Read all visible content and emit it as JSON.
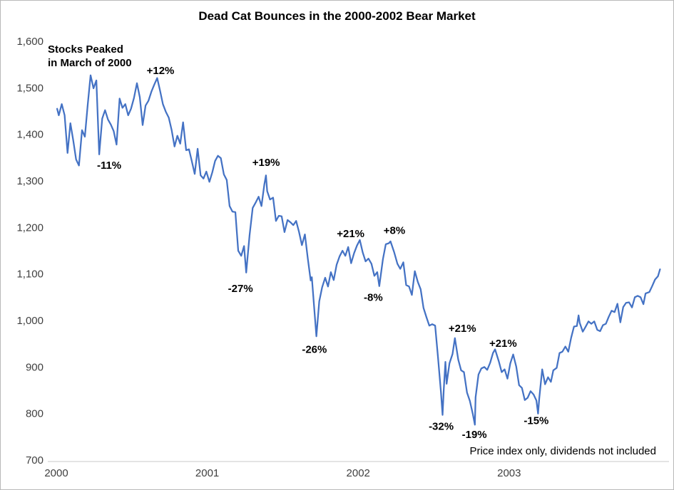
{
  "chart": {
    "title": "Dead Cat Bounces in the 2000-2002 Bear Market",
    "note": "Price index only, dividends not included"
  },
  "chart_data": {
    "type": "line",
    "title": "Dead Cat Bounces in the 2000-2002 Bear Market",
    "xlabel": "",
    "ylabel": "",
    "xlim": [
      2000,
      2004.05
    ],
    "ylim": [
      700,
      1600
    ],
    "grid": false,
    "legend": "none",
    "line_color": "#4472C4",
    "axis_label_color": "#404040",
    "axis_line_color": "#c9c9c9",
    "note": "Price index only, dividends not included",
    "callout": {
      "lines": [
        "Stocks Peaked",
        "in March of 2000"
      ],
      "x": 2000.02,
      "y": 1580
    },
    "y_ticks": [
      {
        "v": 1600,
        "label": "1,600"
      },
      {
        "v": 1500,
        "label": "1,500"
      },
      {
        "v": 1400,
        "label": "1,400"
      },
      {
        "v": 1300,
        "label": "1,300"
      },
      {
        "v": 1200,
        "label": "1,200"
      },
      {
        "v": 1100,
        "label": "1,100"
      },
      {
        "v": 1000,
        "label": "1,000"
      },
      {
        "v": 900,
        "label": "900"
      },
      {
        "v": 800,
        "label": "800"
      },
      {
        "v": 700,
        "label": "700"
      }
    ],
    "x_ticks": [
      {
        "v": 2000,
        "label": "2000"
      },
      {
        "v": 2001,
        "label": "2001"
      },
      {
        "v": 2002,
        "label": "2002"
      },
      {
        "v": 2003,
        "label": "2003"
      }
    ],
    "annotations": [
      {
        "text": "-11%",
        "x": 2000.35,
        "y": 1334
      },
      {
        "text": "+12%",
        "x": 2000.69,
        "y": 1537
      },
      {
        "text": "+19%",
        "x": 2001.39,
        "y": 1340
      },
      {
        "text": "-27%",
        "x": 2001.22,
        "y": 1069
      },
      {
        "text": "-26%",
        "x": 2001.71,
        "y": 938
      },
      {
        "text": "+21%",
        "x": 2001.95,
        "y": 1187
      },
      {
        "text": "-8%",
        "x": 2002.1,
        "y": 1050
      },
      {
        "text": "+8%",
        "x": 2002.24,
        "y": 1194
      },
      {
        "text": "-32%",
        "x": 2002.55,
        "y": 773
      },
      {
        "text": "+21%",
        "x": 2002.69,
        "y": 983
      },
      {
        "text": "-19%",
        "x": 2002.77,
        "y": 755
      },
      {
        "text": "+21%",
        "x": 2002.96,
        "y": 951
      },
      {
        "text": "-15%",
        "x": 2003.18,
        "y": 785
      }
    ],
    "series": [
      {
        "name": "Price index",
        "points": [
          [
            2000.005,
            1455
          ],
          [
            2000.016,
            1441
          ],
          [
            2000.036,
            1465
          ],
          [
            2000.055,
            1441
          ],
          [
            2000.074,
            1360
          ],
          [
            2000.093,
            1424
          ],
          [
            2000.112,
            1387
          ],
          [
            2000.131,
            1346
          ],
          [
            2000.15,
            1333
          ],
          [
            2000.17,
            1409
          ],
          [
            2000.189,
            1395
          ],
          [
            2000.208,
            1464
          ],
          [
            2000.227,
            1527
          ],
          [
            2000.246,
            1499
          ],
          [
            2000.265,
            1516
          ],
          [
            2000.284,
            1357
          ],
          [
            2000.304,
            1434
          ],
          [
            2000.323,
            1452
          ],
          [
            2000.342,
            1432
          ],
          [
            2000.361,
            1421
          ],
          [
            2000.38,
            1407
          ],
          [
            2000.399,
            1378
          ],
          [
            2000.419,
            1477
          ],
          [
            2000.438,
            1457
          ],
          [
            2000.457,
            1465
          ],
          [
            2000.476,
            1441
          ],
          [
            2000.495,
            1455
          ],
          [
            2000.514,
            1478
          ],
          [
            2000.534,
            1510
          ],
          [
            2000.553,
            1480
          ],
          [
            2000.572,
            1420
          ],
          [
            2000.591,
            1462
          ],
          [
            2000.61,
            1472
          ],
          [
            2000.63,
            1492
          ],
          [
            2000.649,
            1507
          ],
          [
            2000.668,
            1521
          ],
          [
            2000.687,
            1494
          ],
          [
            2000.706,
            1465
          ],
          [
            2000.725,
            1449
          ],
          [
            2000.745,
            1436
          ],
          [
            2000.764,
            1409
          ],
          [
            2000.783,
            1374
          ],
          [
            2000.802,
            1397
          ],
          [
            2000.821,
            1380
          ],
          [
            2000.84,
            1426
          ],
          [
            2000.86,
            1366
          ],
          [
            2000.879,
            1368
          ],
          [
            2000.898,
            1342
          ],
          [
            2000.917,
            1315
          ],
          [
            2000.936,
            1369
          ],
          [
            2000.956,
            1312
          ],
          [
            2000.975,
            1305
          ],
          [
            2000.994,
            1320
          ],
          [
            2001.014,
            1298
          ],
          [
            2001.033,
            1318
          ],
          [
            2001.052,
            1343
          ],
          [
            2001.071,
            1354
          ],
          [
            2001.09,
            1349
          ],
          [
            2001.11,
            1314
          ],
          [
            2001.129,
            1302
          ],
          [
            2001.148,
            1246
          ],
          [
            2001.167,
            1234
          ],
          [
            2001.186,
            1233
          ],
          [
            2001.205,
            1150
          ],
          [
            2001.225,
            1139
          ],
          [
            2001.244,
            1160
          ],
          [
            2001.258,
            1103
          ],
          [
            2001.28,
            1183
          ],
          [
            2001.301,
            1242
          ],
          [
            2001.32,
            1253
          ],
          [
            2001.34,
            1266
          ],
          [
            2001.359,
            1246
          ],
          [
            2001.378,
            1292
          ],
          [
            2001.389,
            1312
          ],
          [
            2001.397,
            1278
          ],
          [
            2001.416,
            1260
          ],
          [
            2001.436,
            1264
          ],
          [
            2001.455,
            1214
          ],
          [
            2001.474,
            1225
          ],
          [
            2001.493,
            1224
          ],
          [
            2001.512,
            1190
          ],
          [
            2001.532,
            1216
          ],
          [
            2001.551,
            1211
          ],
          [
            2001.57,
            1205
          ],
          [
            2001.589,
            1214
          ],
          [
            2001.608,
            1190
          ],
          [
            2001.627,
            1162
          ],
          [
            2001.647,
            1185
          ],
          [
            2001.666,
            1134
          ],
          [
            2001.685,
            1086
          ],
          [
            2001.693,
            1093
          ],
          [
            2001.723,
            966
          ],
          [
            2001.742,
            1041
          ],
          [
            2001.761,
            1071
          ],
          [
            2001.781,
            1092
          ],
          [
            2001.8,
            1073
          ],
          [
            2001.819,
            1104
          ],
          [
            2001.838,
            1087
          ],
          [
            2001.857,
            1120
          ],
          [
            2001.877,
            1138
          ],
          [
            2001.896,
            1150
          ],
          [
            2001.915,
            1139
          ],
          [
            2001.934,
            1158
          ],
          [
            2001.953,
            1123
          ],
          [
            2001.973,
            1145
          ],
          [
            2001.992,
            1161
          ],
          [
            2002.011,
            1173
          ],
          [
            2002.03,
            1146
          ],
          [
            2002.049,
            1127
          ],
          [
            2002.068,
            1133
          ],
          [
            2002.088,
            1122
          ],
          [
            2002.107,
            1096
          ],
          [
            2002.126,
            1104
          ],
          [
            2002.14,
            1074
          ],
          [
            2002.164,
            1132
          ],
          [
            2002.183,
            1164
          ],
          [
            2002.203,
            1166
          ],
          [
            2002.214,
            1170
          ],
          [
            2002.238,
            1147
          ],
          [
            2002.26,
            1122
          ],
          [
            2002.279,
            1111
          ],
          [
            2002.299,
            1125
          ],
          [
            2002.318,
            1076
          ],
          [
            2002.337,
            1073
          ],
          [
            2002.356,
            1055
          ],
          [
            2002.375,
            1106
          ],
          [
            2002.395,
            1083
          ],
          [
            2002.414,
            1067
          ],
          [
            2002.433,
            1027
          ],
          [
            2002.452,
            1007
          ],
          [
            2002.471,
            989
          ],
          [
            2002.49,
            992
          ],
          [
            2002.51,
            989
          ],
          [
            2002.529,
            921
          ],
          [
            2002.548,
            847
          ],
          [
            2002.559,
            797
          ],
          [
            2002.567,
            852
          ],
          [
            2002.578,
            911
          ],
          [
            2002.586,
            864
          ],
          [
            2002.605,
            908
          ],
          [
            2002.625,
            928
          ],
          [
            2002.641,
            962
          ],
          [
            2002.663,
            916
          ],
          [
            2002.682,
            893
          ],
          [
            2002.701,
            889
          ],
          [
            2002.721,
            845
          ],
          [
            2002.74,
            827
          ],
          [
            2002.759,
            800
          ],
          [
            2002.773,
            776
          ],
          [
            2002.778,
            835
          ],
          [
            2002.797,
            884
          ],
          [
            2002.816,
            897
          ],
          [
            2002.836,
            900
          ],
          [
            2002.855,
            894
          ],
          [
            2002.874,
            909
          ],
          [
            2002.893,
            930
          ],
          [
            2002.907,
            938
          ],
          [
            2002.932,
            912
          ],
          [
            2002.951,
            889
          ],
          [
            2002.97,
            895
          ],
          [
            2002.989,
            875
          ],
          [
            2003.008,
            908
          ],
          [
            2003.027,
            927
          ],
          [
            2003.047,
            901
          ],
          [
            2003.066,
            861
          ],
          [
            2003.085,
            855
          ],
          [
            2003.104,
            829
          ],
          [
            2003.123,
            834
          ],
          [
            2003.142,
            848
          ],
          [
            2003.162,
            841
          ],
          [
            2003.181,
            828
          ],
          [
            2003.192,
            800
          ],
          [
            2003.2,
            833
          ],
          [
            2003.219,
            895
          ],
          [
            2003.238,
            863
          ],
          [
            2003.258,
            878
          ],
          [
            2003.277,
            868
          ],
          [
            2003.293,
            893
          ],
          [
            2003.315,
            898
          ],
          [
            2003.334,
            930
          ],
          [
            2003.353,
            933
          ],
          [
            2003.373,
            944
          ],
          [
            2003.392,
            933
          ],
          [
            2003.411,
            963
          ],
          [
            2003.43,
            987
          ],
          [
            2003.449,
            988
          ],
          [
            2003.46,
            1011
          ],
          [
            2003.468,
            995
          ],
          [
            2003.488,
            976
          ],
          [
            2003.504,
            985
          ],
          [
            2003.526,
            998
          ],
          [
            2003.545,
            993
          ],
          [
            2003.564,
            998
          ],
          [
            2003.584,
            980
          ],
          [
            2003.603,
            977
          ],
          [
            2003.622,
            990
          ],
          [
            2003.641,
            993
          ],
          [
            2003.66,
            1008
          ],
          [
            2003.679,
            1021
          ],
          [
            2003.699,
            1018
          ],
          [
            2003.718,
            1036
          ],
          [
            2003.737,
            996
          ],
          [
            2003.756,
            1029
          ],
          [
            2003.775,
            1038
          ],
          [
            2003.795,
            1039
          ],
          [
            2003.814,
            1028
          ],
          [
            2003.833,
            1050
          ],
          [
            2003.852,
            1053
          ],
          [
            2003.871,
            1050
          ],
          [
            2003.89,
            1035
          ],
          [
            2003.904,
            1058
          ],
          [
            2003.929,
            1061
          ],
          [
            2003.948,
            1074
          ],
          [
            2003.967,
            1088
          ],
          [
            2003.986,
            1095
          ],
          [
            2004.0,
            1110
          ]
        ]
      }
    ]
  }
}
